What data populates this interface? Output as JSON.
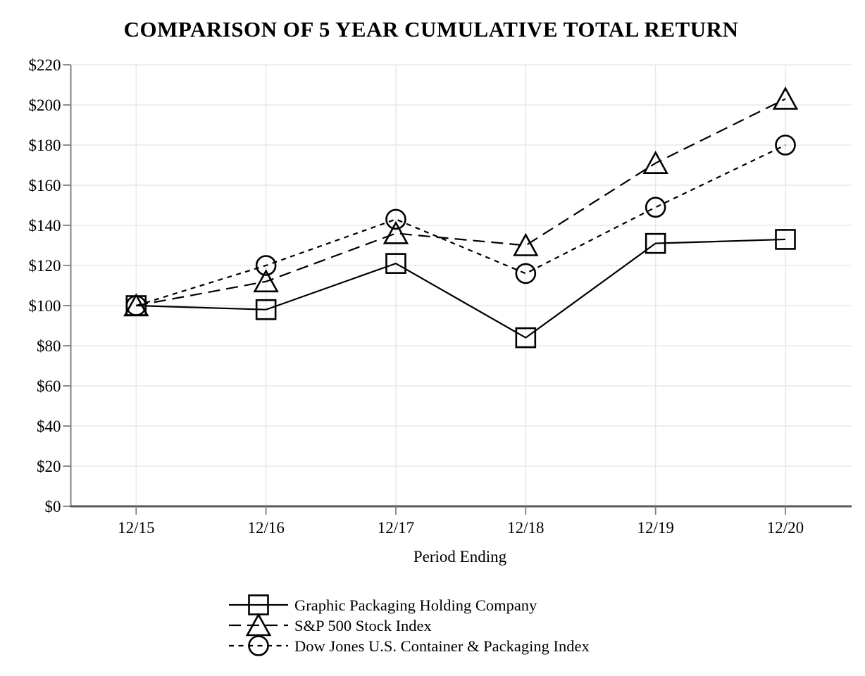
{
  "title": "COMPARISON OF 5 YEAR CUMULATIVE TOTAL RETURN",
  "chart_data": {
    "type": "line",
    "x": [
      "12/15",
      "12/16",
      "12/17",
      "12/18",
      "12/19",
      "12/20"
    ],
    "xlabel": "Period Ending",
    "ylabel": "",
    "ylim": [
      0,
      220
    ],
    "y_tick_step": 20,
    "y_tick_prefix": "$",
    "grid": true,
    "legend_position": "bottom",
    "series": [
      {
        "name": "Graphic Packaging Holding Company",
        "marker": "square",
        "line_style": "solid",
        "values": [
          100,
          98,
          121,
          84,
          131,
          133
        ]
      },
      {
        "name": "S&P 500 Stock Index",
        "marker": "triangle",
        "line_style": "long-dash",
        "values": [
          100,
          112,
          136,
          130,
          171,
          203
        ]
      },
      {
        "name": "Dow Jones U.S. Container & Packaging Index",
        "marker": "circle",
        "line_style": "short-dash",
        "values": [
          100,
          120,
          143,
          116,
          149,
          180
        ]
      }
    ],
    "colors": {
      "series_stroke": "#000000",
      "marker_fill": "none",
      "grid_line": "#e8e8e8",
      "y_axis": "#808080",
      "x_axis": "#595959",
      "tick": "#808080",
      "text": "#000000",
      "background": "#ffffff"
    }
  }
}
